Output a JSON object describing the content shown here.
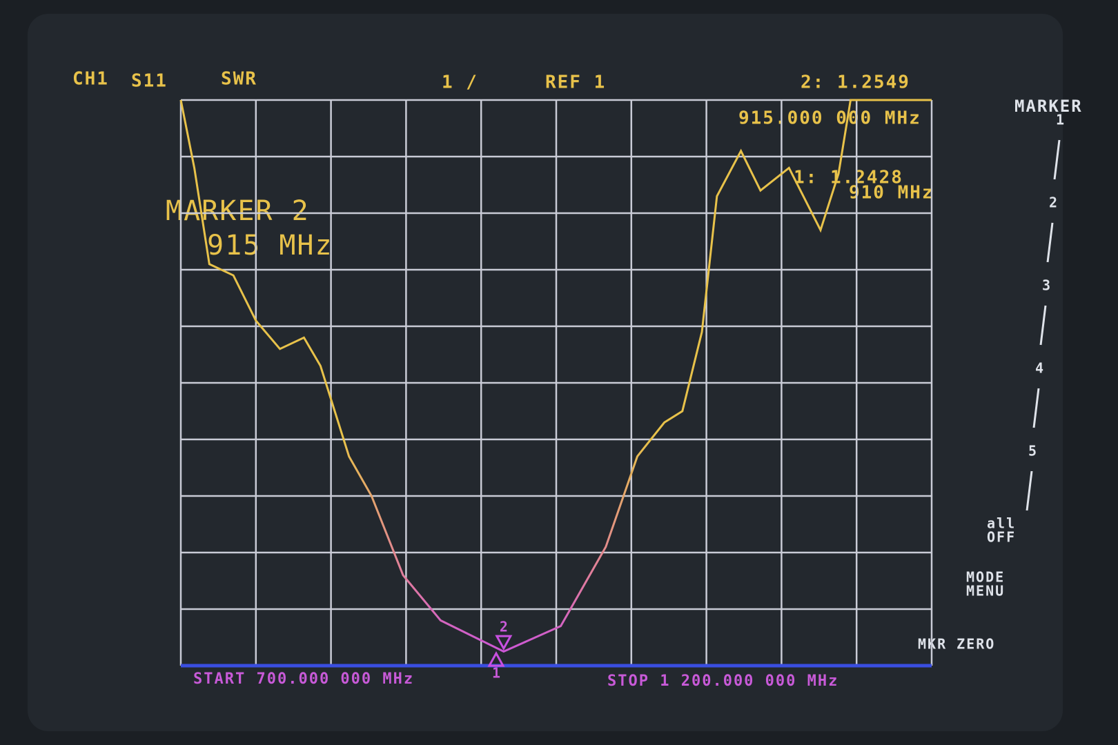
{
  "chart_data": {
    "type": "line",
    "channel": "CH1",
    "parameter": "S11",
    "format": "SWR",
    "scale": "1  /",
    "reference": "REF 1",
    "marker_readout": "2: 1.2549",
    "marker_readout_freq": "915.000 000 MHz",
    "marker1_readout": "1: 1.2428",
    "marker1_readout_freq": "910 MHz",
    "annotation_title": "MARKER 2",
    "annotation_freq": "915 MHz",
    "start_label": "START 700.000 000 MHz",
    "stop_label": "STOP 1 200.000 000 MHz",
    "x": [
      700,
      709,
      719,
      735,
      750,
      766,
      782,
      793,
      812,
      827,
      848,
      873,
      915,
      953,
      983,
      1004,
      1022,
      1034,
      1047,
      1057,
      1073,
      1086,
      1105,
      1126,
      1138,
      1146,
      1200
    ],
    "series": [
      {
        "color": "#e8c24a",
        "values": [
          11,
          9.8,
          8.1,
          7.9,
          7.1,
          6.6,
          6.8,
          6.3,
          4.7,
          4.0,
          2.6,
          1.8,
          1.25,
          1.7,
          3.1,
          4.7,
          5.3,
          5.5,
          6.9,
          9.3,
          10.1,
          9.4,
          9.8,
          8.7,
          9.7,
          11,
          11
        ]
      }
    ],
    "markers": [
      {
        "name": "1",
        "x": 910,
        "value": 1.2428
      },
      {
        "name": "2",
        "x": 915,
        "value": 1.2549
      }
    ],
    "xlim": [
      700,
      1200
    ],
    "xticks": [
      700,
      750,
      800,
      850,
      900,
      950,
      1000,
      1050,
      1100,
      1150,
      1200
    ],
    "ylim": [
      1,
      11
    ],
    "yticks": [
      1,
      2,
      3,
      4,
      5,
      6,
      7,
      8,
      9,
      10,
      11
    ],
    "grid": true
  },
  "softkeys": {
    "title": "MARKER",
    "items": [
      "1",
      "2",
      "3",
      "4",
      "5"
    ],
    "all_off": [
      "all",
      "OFF"
    ],
    "mode_menu": [
      "MODE",
      "MENU"
    ],
    "mkr_zero": "MKR ZERO"
  }
}
